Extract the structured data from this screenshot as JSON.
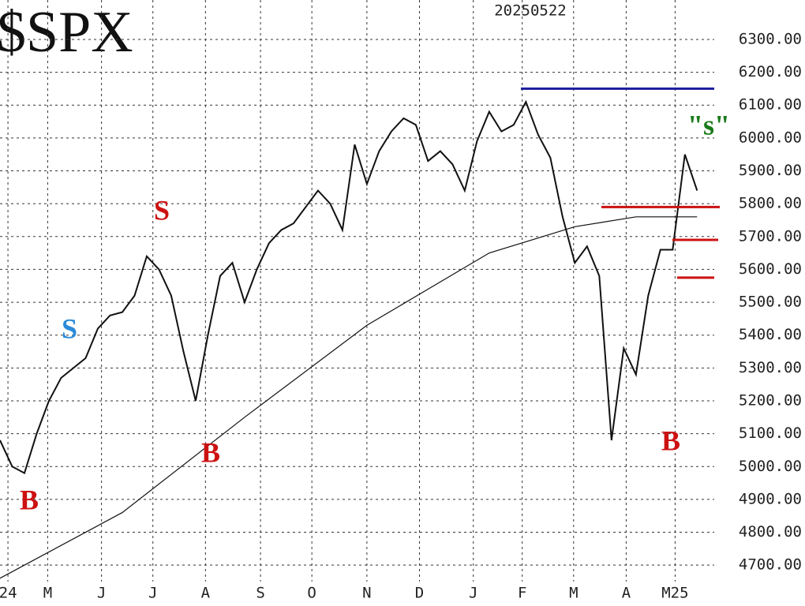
{
  "chart_data": {
    "type": "line",
    "title": "$SPX",
    "subtitle": "20250522",
    "xlim": [
      0,
      58.4
    ],
    "ylim": [
      4650,
      6420
    ],
    "grid": true,
    "xticks": [
      {
        "value": 0.65,
        "label": "24"
      },
      {
        "value": 3.9,
        "label": "M"
      },
      {
        "value": 8.3,
        "label": "J"
      },
      {
        "value": 12.5,
        "label": "J"
      },
      {
        "value": 16.8,
        "label": "A"
      },
      {
        "value": 21.3,
        "label": "S"
      },
      {
        "value": 25.5,
        "label": "O"
      },
      {
        "value": 30,
        "label": "N"
      },
      {
        "value": 34.3,
        "label": "D"
      },
      {
        "value": 38.7,
        "label": "J"
      },
      {
        "value": 42.7,
        "label": "F"
      },
      {
        "value": 46.9,
        "label": "M"
      },
      {
        "value": 51.2,
        "label": "A"
      },
      {
        "value": 55.2,
        "label": "M25"
      }
    ],
    "yticks": [
      {
        "value": 4700,
        "label": "4700.00"
      },
      {
        "value": 4800,
        "label": "4800.00"
      },
      {
        "value": 4900,
        "label": "4900.00"
      },
      {
        "value": 5000,
        "label": "5000.00"
      },
      {
        "value": 5100,
        "label": "5100.00"
      },
      {
        "value": 5200,
        "label": "5200.00"
      },
      {
        "value": 5300,
        "label": "5300.00"
      },
      {
        "value": 5400,
        "label": "5400.00"
      },
      {
        "value": 5500,
        "label": "5500.00"
      },
      {
        "value": 5600,
        "label": "5600.00"
      },
      {
        "value": 5700,
        "label": "5700.00"
      },
      {
        "value": 5800,
        "label": "5800.00"
      },
      {
        "value": 5900,
        "label": "5900.00"
      },
      {
        "value": 6000,
        "label": "6000.00"
      },
      {
        "value": 6100,
        "label": "6100.00"
      },
      {
        "value": 6200,
        "label": "6200.00"
      },
      {
        "value": 6300,
        "label": "6300.00"
      }
    ],
    "series": [
      {
        "color": "#111111",
        "x": [
          0,
          1,
          2,
          3,
          4,
          5,
          6,
          7,
          8,
          9,
          10,
          11,
          12,
          13,
          14,
          15,
          16,
          17,
          18,
          19,
          20,
          21,
          22,
          23,
          24,
          25,
          26,
          27,
          28,
          29,
          30,
          31,
          32,
          33,
          34,
          35,
          36,
          37,
          38,
          39,
          40,
          41,
          42,
          43,
          44,
          45,
          46,
          47,
          48,
          49,
          50,
          51,
          52,
          53,
          54,
          55,
          56,
          57
        ],
        "values": [
          5080,
          5000,
          4980,
          5100,
          5200,
          5270,
          5300,
          5330,
          5420,
          5460,
          5470,
          5520,
          5640,
          5600,
          5520,
          5350,
          5200,
          5400,
          5580,
          5620,
          5500,
          5600,
          5680,
          5720,
          5740,
          5790,
          5840,
          5800,
          5720,
          5980,
          5860,
          5960,
          6020,
          6060,
          6040,
          5930,
          5960,
          5920,
          5840,
          5990,
          6080,
          6020,
          6040,
          6110,
          6010,
          5940,
          5760,
          5620,
          5670,
          5580,
          5080,
          5360,
          5280,
          5520,
          5660,
          5660,
          5950,
          5840
        ]
      },
      {
        "color": "#111111",
        "x": [
          0,
          10,
          20,
          30,
          40,
          47,
          52,
          57
        ],
        "values": [
          4660,
          4860,
          5150,
          5430,
          5650,
          5730,
          5760,
          5760
        ]
      }
    ],
    "reference_lines": [
      {
        "y": 6150,
        "color": "#1c1c9c"
      },
      {
        "y": 5790,
        "color": "#cc1111"
      },
      {
        "y": 5690,
        "color": "#cc1111"
      },
      {
        "y": 5575,
        "color": "#cc1111"
      }
    ],
    "annotations": [
      {
        "text": "S",
        "color": "#cc1111"
      },
      {
        "text": "S",
        "color": "#2a8ad8"
      },
      {
        "text": "B",
        "color": "#cc1111"
      },
      {
        "text": "B",
        "color": "#cc1111"
      },
      {
        "text": "B",
        "color": "#cc1111"
      },
      {
        "text": "\"s\"",
        "color": "#1a7a1a"
      }
    ]
  }
}
